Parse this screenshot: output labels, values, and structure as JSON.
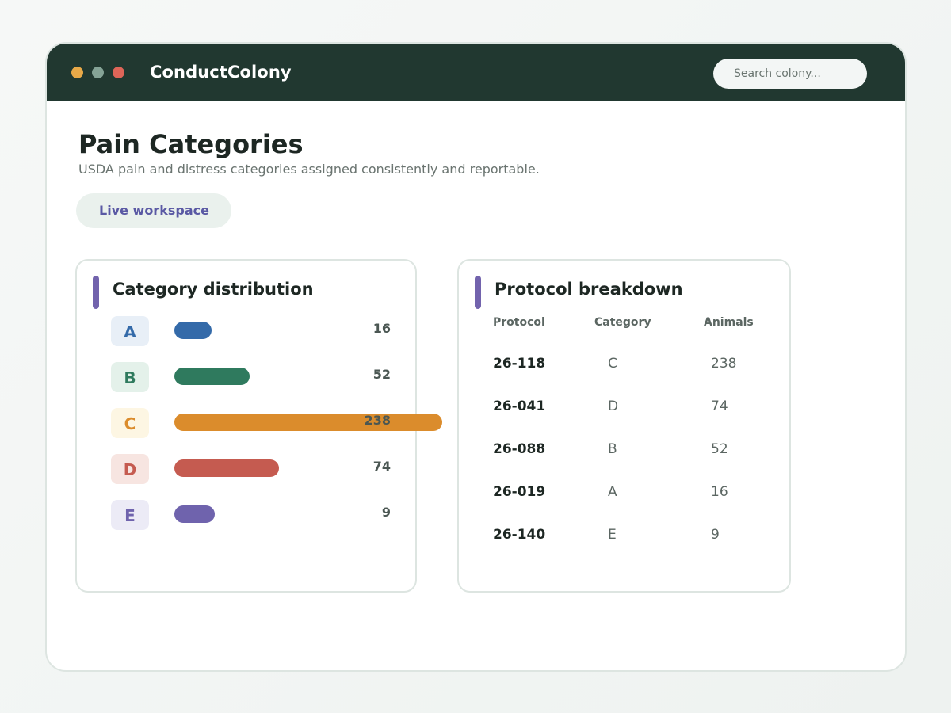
{
  "app": {
    "title": "ConductColony",
    "search_placeholder": "Search colony..."
  },
  "page": {
    "title": "Pain Categories",
    "subtitle": "USDA pain and distress categories assigned consistently and reportable.",
    "chip_label": "Live workspace"
  },
  "distribution": {
    "title": "Category distribution",
    "rows": [
      {
        "label": "A",
        "value": 16,
        "count_text": "16",
        "color": "#346aa9",
        "badge_bg": "#e8eff7",
        "fill": 0.14
      },
      {
        "label": "B",
        "value": 52,
        "count_text": "52",
        "color": "#2f7a5e",
        "badge_bg": "#e4f1ea",
        "fill": 0.28
      },
      {
        "label": "C",
        "value": 238,
        "count_text": "238",
        "color": "#db8c2c",
        "badge_bg": "#fdf6e3",
        "fill": 1.0
      },
      {
        "label": "D",
        "value": 74,
        "count_text": "74",
        "color": "#c55b50",
        "badge_bg": "#f7e5e1",
        "fill": 0.39
      },
      {
        "label": "E",
        "value": 9,
        "count_text": "9",
        "color": "#6f63ad",
        "badge_bg": "#ecebf6",
        "fill": 0.15
      }
    ]
  },
  "protocols": {
    "title": "Protocol breakdown",
    "headers": [
      "Protocol",
      "Category",
      "Animals"
    ],
    "rows": [
      {
        "protocol": "26-118",
        "category": "C",
        "animals": "238"
      },
      {
        "protocol": "26-041",
        "category": "D",
        "animals": "74"
      },
      {
        "protocol": "26-088",
        "category": "B",
        "animals": "52"
      },
      {
        "protocol": "26-019",
        "category": "A",
        "animals": "16"
      },
      {
        "protocol": "26-140",
        "category": "E",
        "animals": "9"
      }
    ]
  }
}
